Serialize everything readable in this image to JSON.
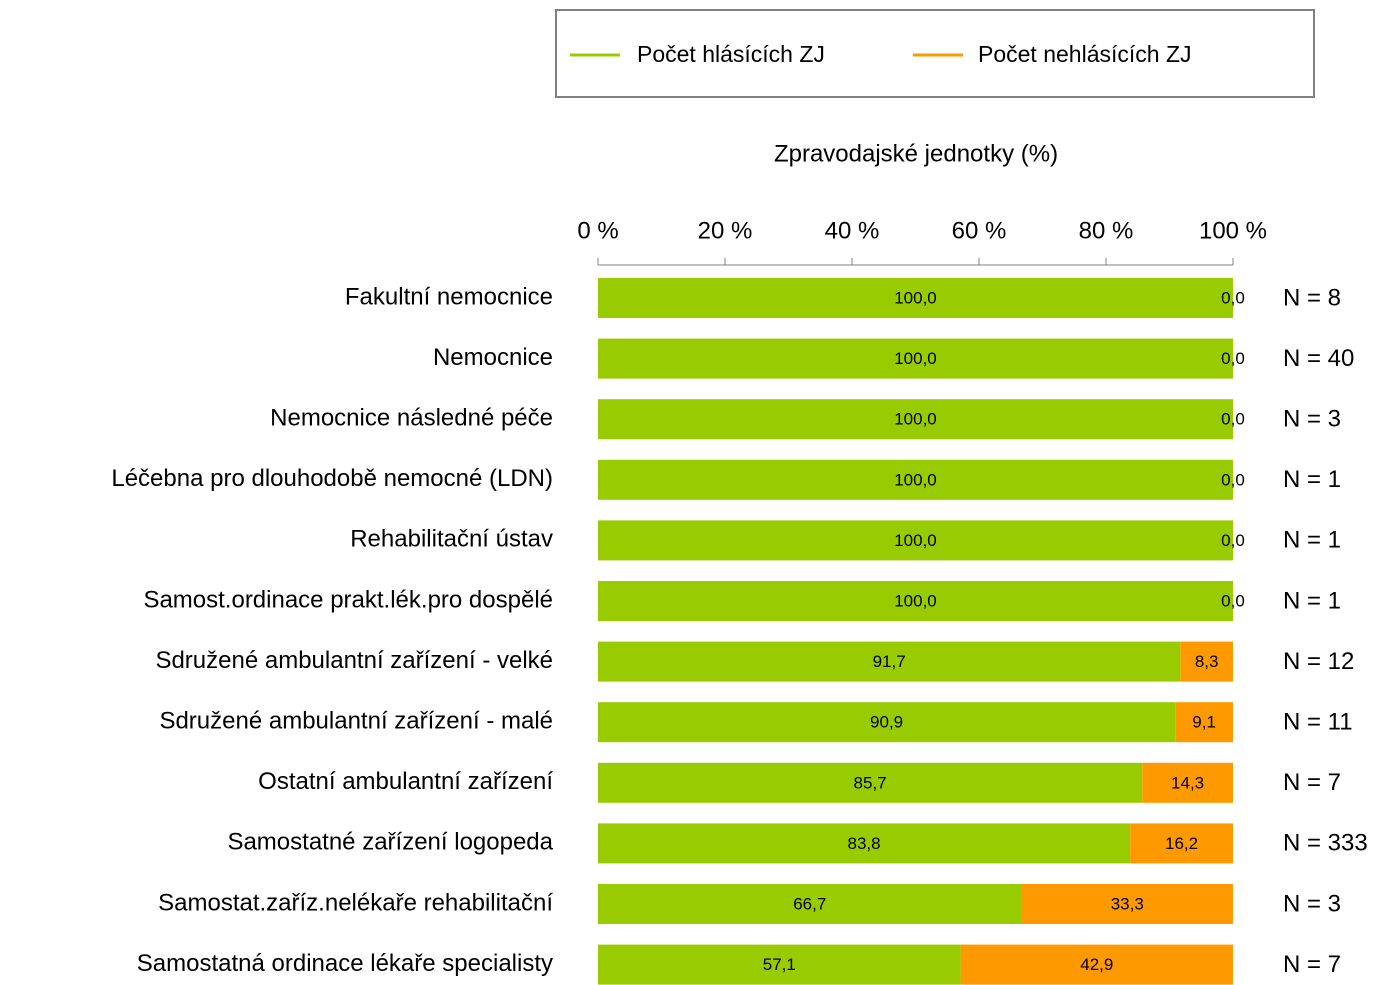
{
  "chart_data": {
    "type": "stacked_barh",
    "axis_title": "Zpravodajské jednotky (%)",
    "categories": [
      "Fakultní nemocnice",
      "Nemocnice",
      "Nemocnice následné péče",
      "Léčebna pro dlouhodobě nemocné (LDN)",
      "Rehabilitační ústav",
      "Samost.ordinace prakt.lék.pro dospělé",
      "Sdružené ambulantní zařízení - velké",
      "Sdružené ambulantní zařízení - malé",
      "Ostatní ambulantní zařízení",
      "Samostatné zařízení logopeda",
      "Samostat.zaříz.nelékaře rehabilitační",
      "Samostatná ordinace lékaře specialisty"
    ],
    "series": [
      {
        "name": "Počet hlásících ZJ",
        "color": "#99cc00",
        "values": [
          100,
          100,
          100,
          100,
          100,
          100,
          91.7,
          90.9,
          85.7,
          83.8,
          66.7,
          57.1
        ],
        "value_labels": [
          "100,0",
          "100,0",
          "100,0",
          "100,0",
          "100,0",
          "100,0",
          "91,7",
          "90,9",
          "85,7",
          "83,8",
          "66,7",
          "57,1"
        ]
      },
      {
        "name": "Počet nehlásících ZJ",
        "color": "#ff9900",
        "values": [
          0,
          0,
          0,
          0,
          0,
          0,
          8.3,
          9.1,
          14.3,
          16.2,
          33.3,
          42.9
        ],
        "value_labels": [
          "0,0",
          "0,0",
          "0,0",
          "0,0",
          "0,0",
          "0,0",
          "8,3",
          "9,1",
          "14,3",
          "16,2",
          "33,3",
          "42,9"
        ]
      }
    ],
    "annotations": [
      "N = 8",
      "N = 40",
      "N = 3",
      "N = 1",
      "N = 1",
      "N = 1",
      "N = 12",
      "N = 11",
      "N = 7",
      "N = 333",
      "N = 3",
      "N = 7"
    ],
    "xlim": [
      0,
      100
    ],
    "xticks": [
      {
        "value": 0,
        "label": "0 %"
      },
      {
        "value": 20,
        "label": "20 %"
      },
      {
        "value": 40,
        "label": "40 %"
      },
      {
        "value": 60,
        "label": "60 %"
      },
      {
        "value": 80,
        "label": "80 %"
      },
      {
        "value": 100,
        "label": "100 %"
      }
    ],
    "legend": "top"
  }
}
